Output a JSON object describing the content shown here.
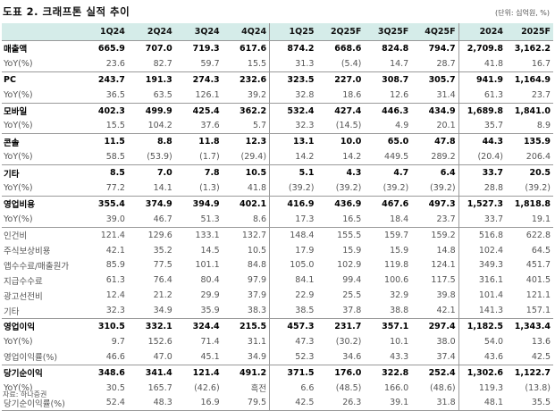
{
  "title": "도표 2. 크래프톤 실적 추이",
  "unit": "(단위: 십억원, %)",
  "columns": [
    "1Q24",
    "2Q24",
    "3Q24",
    "4Q24",
    "1Q25",
    "2Q25F",
    "3Q25F",
    "4Q25F",
    "2024",
    "2025F"
  ],
  "rows": [
    {
      "label": "매출액",
      "style": "bold",
      "values": [
        "665.9",
        "707.0",
        "719.3",
        "617.6",
        "874.2",
        "668.6",
        "824.8",
        "794.7",
        "2,709.8",
        "3,162.2"
      ]
    },
    {
      "label": "YoY(%)",
      "style": "sub",
      "values": [
        "23.6",
        "82.7",
        "59.7",
        "15.5",
        "31.3",
        "(5.4)",
        "14.7",
        "28.7",
        "41.8",
        "16.7"
      ]
    },
    {
      "label": "PC",
      "style": "bold top",
      "values": [
        "243.7",
        "191.3",
        "274.3",
        "232.6",
        "323.5",
        "227.0",
        "308.7",
        "305.7",
        "941.9",
        "1,164.9"
      ]
    },
    {
      "label": "YoY(%)",
      "style": "sub",
      "values": [
        "36.5",
        "63.5",
        "126.1",
        "39.2",
        "32.8",
        "18.6",
        "12.6",
        "31.4",
        "61.3",
        "23.7"
      ]
    },
    {
      "label": "모바일",
      "style": "bold top",
      "values": [
        "402.3",
        "499.9",
        "425.4",
        "362.2",
        "532.4",
        "427.4",
        "446.3",
        "434.9",
        "1,689.8",
        "1,841.0"
      ]
    },
    {
      "label": "YoY(%)",
      "style": "sub",
      "values": [
        "15.5",
        "104.2",
        "37.6",
        "5.7",
        "32.3",
        "(14.5)",
        "4.9",
        "20.1",
        "35.7",
        "8.9"
      ]
    },
    {
      "label": "콘솔",
      "style": "bold top",
      "values": [
        "11.5",
        "8.8",
        "11.8",
        "12.3",
        "13.1",
        "10.0",
        "65.0",
        "47.8",
        "44.3",
        "135.9"
      ]
    },
    {
      "label": "YoY(%)",
      "style": "sub",
      "values": [
        "58.5",
        "(53.9)",
        "(1.7)",
        "(29.4)",
        "14.2",
        "14.2",
        "449.5",
        "289.2",
        "(20.4)",
        "206.4"
      ]
    },
    {
      "label": "기타",
      "style": "bold top",
      "values": [
        "8.5",
        "7.0",
        "7.8",
        "10.5",
        "5.1",
        "4.3",
        "4.7",
        "6.4",
        "33.7",
        "20.5"
      ]
    },
    {
      "label": "YoY(%)",
      "style": "sub",
      "values": [
        "77.2",
        "14.1",
        "(1.3)",
        "41.8",
        "(39.2)",
        "(39.2)",
        "(39.2)",
        "(39.2)",
        "28.8",
        "(39.2)"
      ]
    },
    {
      "label": "영업비용",
      "style": "bold top",
      "values": [
        "355.4",
        "374.9",
        "394.9",
        "402.1",
        "416.9",
        "436.9",
        "467.6",
        "497.3",
        "1,527.3",
        "1,818.8"
      ]
    },
    {
      "label": "YoY(%)",
      "style": "sub",
      "values": [
        "39.0",
        "46.7",
        "51.3",
        "8.6",
        "17.3",
        "16.5",
        "18.4",
        "23.7",
        "33.7",
        "19.1"
      ]
    },
    {
      "label": "인건비",
      "style": "sub top",
      "values": [
        "121.4",
        "129.6",
        "133.1",
        "132.7",
        "148.4",
        "155.5",
        "159.7",
        "159.2",
        "516.8",
        "622.8"
      ]
    },
    {
      "label": "주식보상비용",
      "style": "sub",
      "values": [
        "42.1",
        "35.2",
        "14.5",
        "10.5",
        "17.9",
        "15.9",
        "15.9",
        "14.8",
        "102.4",
        "64.5"
      ]
    },
    {
      "label": "앱수수료/매출원가",
      "style": "sub",
      "values": [
        "85.9",
        "77.5",
        "101.1",
        "84.8",
        "105.0",
        "102.9",
        "119.8",
        "124.1",
        "349.3",
        "451.7"
      ]
    },
    {
      "label": "지급수수료",
      "style": "sub",
      "values": [
        "61.3",
        "76.4",
        "80.4",
        "97.9",
        "84.1",
        "99.4",
        "100.6",
        "117.5",
        "316.1",
        "401.5"
      ]
    },
    {
      "label": "광고선전비",
      "style": "sub",
      "values": [
        "12.4",
        "21.2",
        "29.9",
        "37.9",
        "22.9",
        "25.5",
        "32.9",
        "39.8",
        "101.4",
        "121.1"
      ]
    },
    {
      "label": "기타",
      "style": "sub",
      "values": [
        "32.3",
        "34.9",
        "35.9",
        "38.3",
        "38.5",
        "37.8",
        "38.8",
        "42.1",
        "141.3",
        "157.1"
      ]
    },
    {
      "label": "영업이익",
      "style": "bold top",
      "values": [
        "310.5",
        "332.1",
        "324.4",
        "215.5",
        "457.3",
        "231.7",
        "357.1",
        "297.4",
        "1,182.5",
        "1,343.4"
      ]
    },
    {
      "label": "YoY(%)",
      "style": "sub",
      "values": [
        "9.7",
        "152.6",
        "71.4",
        "31.1",
        "47.3",
        "(30.2)",
        "10.1",
        "38.0",
        "54.0",
        "13.6"
      ]
    },
    {
      "label": "영업이익률(%)",
      "style": "sub",
      "values": [
        "46.6",
        "47.0",
        "45.1",
        "34.9",
        "52.3",
        "34.6",
        "43.3",
        "37.4",
        "43.6",
        "42.5"
      ]
    },
    {
      "label": "당기순이익",
      "style": "bold top",
      "values": [
        "348.6",
        "341.4",
        "121.4",
        "491.2",
        "371.5",
        "176.0",
        "322.8",
        "252.4",
        "1,302.6",
        "1,122.7"
      ]
    },
    {
      "label": "YoY(%)",
      "style": "sub",
      "values": [
        "30.5",
        "165.7",
        "(42.6)",
        "흑전",
        "6.6",
        "(48.5)",
        "166.0",
        "(48.6)",
        "119.3",
        "(13.8)"
      ]
    },
    {
      "label": "당기순이익률(%)",
      "style": "sub last",
      "values": [
        "52.4",
        "48.3",
        "16.9",
        "79.5",
        "42.5",
        "26.3",
        "39.1",
        "31.8",
        "48.1",
        "35.5"
      ]
    }
  ],
  "source": "자료: 하나증권",
  "colors": {
    "header_bg": "#d5ece9"
  }
}
